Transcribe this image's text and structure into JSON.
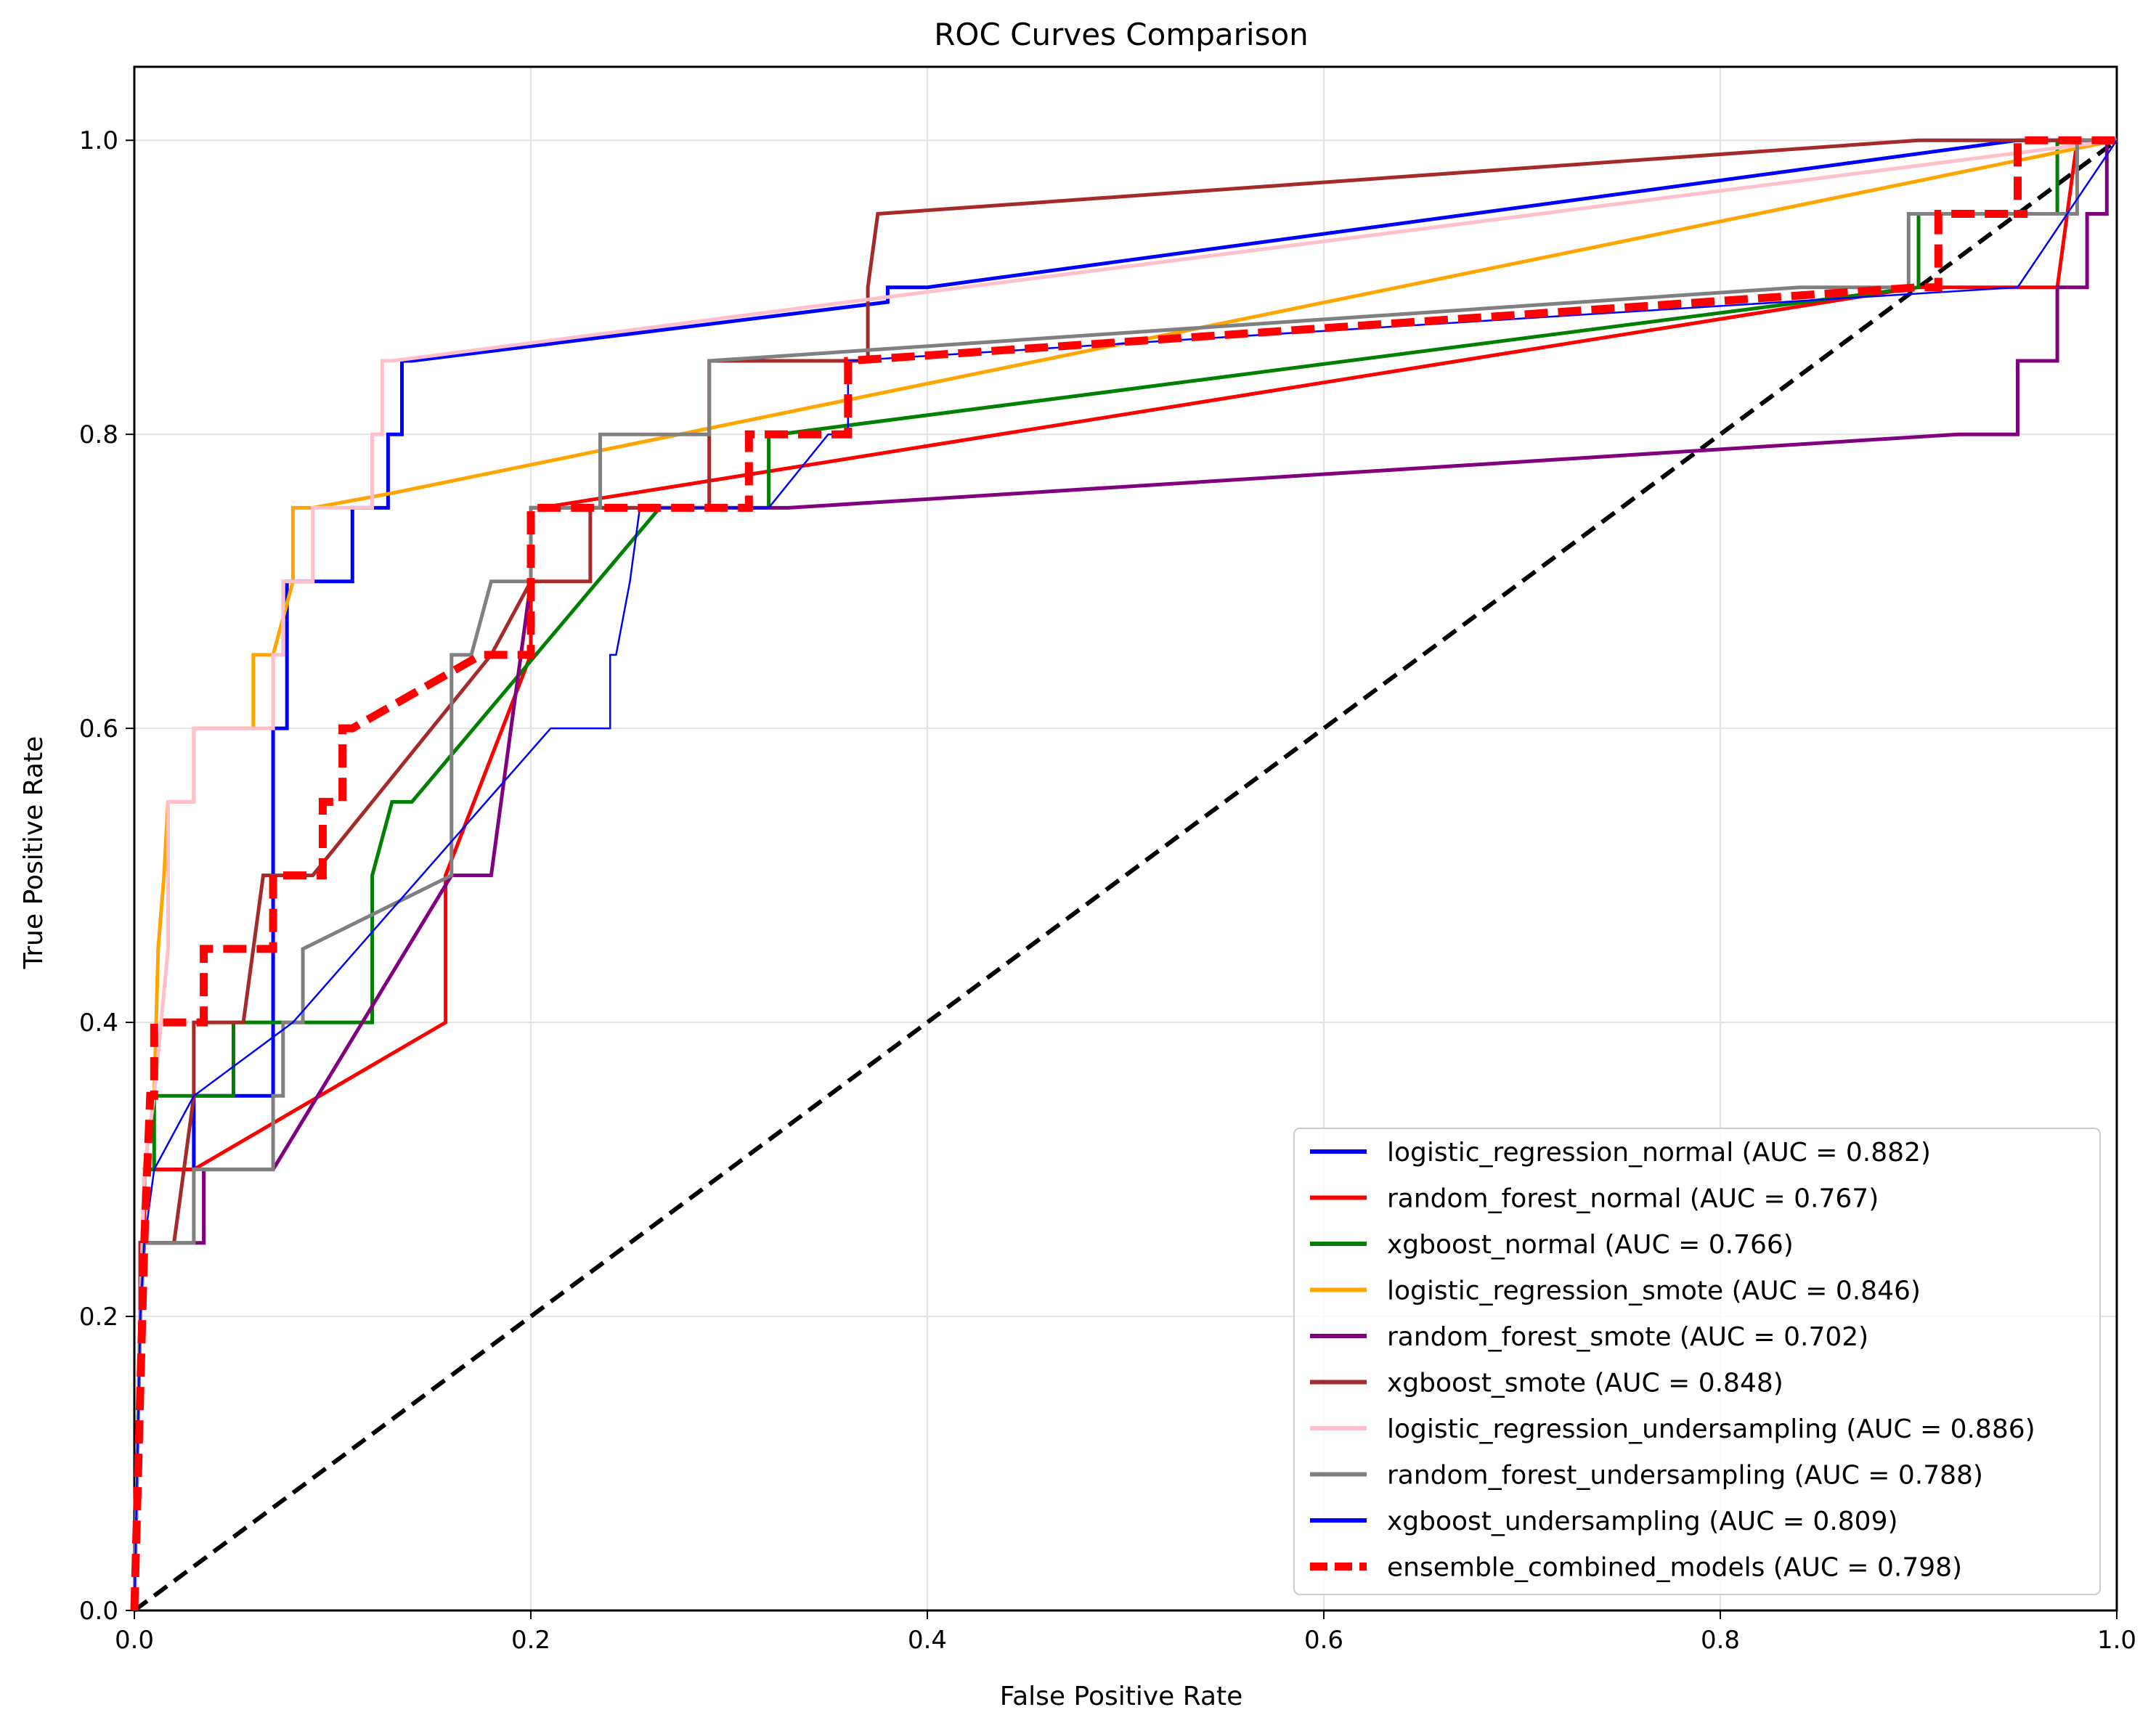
{
  "chart_data": {
    "type": "line",
    "title": "ROC Curves Comparison",
    "xlabel": "False Positive Rate",
    "ylabel": "True Positive Rate",
    "xlim": [
      0.0,
      1.0
    ],
    "ylim": [
      0.0,
      1.05
    ],
    "xticks": [
      0.0,
      0.2,
      0.4,
      0.6,
      0.8,
      1.0
    ],
    "yticks": [
      0.0,
      0.2,
      0.4,
      0.6,
      0.8,
      1.0
    ],
    "xtick_labels": [
      "0.0",
      "0.2",
      "0.4",
      "0.6",
      "0.8",
      "1.0"
    ],
    "ytick_labels": [
      "0.0",
      "0.2",
      "0.4",
      "0.6",
      "0.8",
      "1.0"
    ],
    "grid": true,
    "legend_position": "lower-right",
    "diagonal": {
      "x": [
        0,
        1
      ],
      "y": [
        0,
        1
      ],
      "color": "#000000",
      "style": "dashed"
    },
    "series": [
      {
        "name": "logistic_regression_normal (AUC = 0.882)",
        "color": "#0000ff",
        "style": "solid",
        "x": [
          0,
          0.003,
          0.003,
          0.005,
          0.005,
          0.01,
          0.01,
          0.03,
          0.03,
          0.07,
          0.07,
          0.077,
          0.077,
          0.1,
          0.1,
          0.11,
          0.11,
          0.128,
          0.128,
          0.135,
          0.135,
          0.14,
          0.38,
          0.38,
          0.4,
          0.95,
          1.0
        ],
        "y": [
          0,
          0.2,
          0.25,
          0.25,
          0.3,
          0.3,
          0.3,
          0.3,
          0.35,
          0.35,
          0.6,
          0.6,
          0.7,
          0.7,
          0.7,
          0.7,
          0.75,
          0.75,
          0.8,
          0.8,
          0.85,
          0.85,
          0.89,
          0.9,
          0.9,
          1.0,
          1.0
        ]
      },
      {
        "name": "random_forest_normal (AUC = 0.767)",
        "color": "#ff0000",
        "style": "solid",
        "x": [
          0,
          0.003,
          0.003,
          0.005,
          0.005,
          0.03,
          0.157,
          0.157,
          0.2,
          0.2,
          0.205,
          0.9,
          0.97,
          0.97,
          0.98,
          1.0
        ],
        "y": [
          0,
          0.2,
          0.25,
          0.25,
          0.3,
          0.3,
          0.4,
          0.5,
          0.65,
          0.75,
          0.75,
          0.9,
          0.9,
          0.9,
          1.0,
          1.0
        ]
      },
      {
        "name": "xgboost_normal (AUC = 0.766)",
        "color": "#008000",
        "style": "solid",
        "x": [
          0,
          0.003,
          0.005,
          0.01,
          0.01,
          0.05,
          0.05,
          0.06,
          0.06,
          0.12,
          0.12,
          0.13,
          0.14,
          0.265,
          0.32,
          0.32,
          0.325,
          0.325,
          0.9,
          0.9,
          0.97,
          0.97,
          1.0
        ],
        "y": [
          0,
          0.2,
          0.3,
          0.3,
          0.35,
          0.35,
          0.4,
          0.4,
          0.4,
          0.4,
          0.5,
          0.55,
          0.55,
          0.75,
          0.75,
          0.8,
          0.8,
          0.8,
          0.9,
          0.95,
          0.95,
          1.0,
          1.0
        ]
      },
      {
        "name": "logistic_regression_smote (AUC = 0.846)",
        "color": "#ffa500",
        "style": "solid",
        "x": [
          0,
          0.003,
          0.005,
          0.01,
          0.012,
          0.015,
          0.017,
          0.02,
          0.03,
          0.03,
          0.06,
          0.06,
          0.07,
          0.07,
          0.08,
          0.08,
          0.09,
          0.13,
          1.0
        ],
        "y": [
          0,
          0.2,
          0.3,
          0.35,
          0.45,
          0.5,
          0.55,
          0.55,
          0.55,
          0.6,
          0.6,
          0.65,
          0.65,
          0.65,
          0.7,
          0.75,
          0.75,
          0.76,
          1.0
        ]
      },
      {
        "name": "random_forest_smote (AUC = 0.702)",
        "color": "#800080",
        "style": "solid",
        "x": [
          0,
          0.003,
          0.005,
          0.035,
          0.035,
          0.05,
          0.07,
          0.16,
          0.18,
          0.2,
          0.2,
          0.33,
          0.92,
          0.94,
          0.95,
          0.95,
          0.97,
          0.97,
          0.985,
          0.985,
          0.995,
          0.995,
          1.0
        ],
        "y": [
          0,
          0.2,
          0.25,
          0.25,
          0.3,
          0.3,
          0.3,
          0.5,
          0.5,
          0.7,
          0.75,
          0.75,
          0.8,
          0.8,
          0.8,
          0.85,
          0.85,
          0.9,
          0.9,
          0.95,
          0.95,
          1.0,
          1.0
        ]
      },
      {
        "name": "xgboost_smote (AUC = 0.848)",
        "color": "#a52a2a",
        "style": "solid",
        "x": [
          0,
          0.003,
          0.005,
          0.02,
          0.025,
          0.03,
          0.03,
          0.055,
          0.065,
          0.09,
          0.18,
          0.2,
          0.23,
          0.23,
          0.29,
          0.29,
          0.32,
          0.33,
          0.33,
          0.37,
          0.37,
          0.375,
          0.9,
          0.95,
          1.0
        ],
        "y": [
          0,
          0.2,
          0.25,
          0.25,
          0.3,
          0.35,
          0.4,
          0.4,
          0.5,
          0.5,
          0.65,
          0.7,
          0.7,
          0.75,
          0.75,
          0.85,
          0.85,
          0.85,
          0.85,
          0.85,
          0.9,
          0.95,
          1.0,
          1.0,
          1.0
        ]
      },
      {
        "name": "logistic_regression_undersampling (AUC = 0.886)",
        "color": "#ffc0cb",
        "style": "solid",
        "x": [
          0,
          0.003,
          0.005,
          0.01,
          0.017,
          0.017,
          0.03,
          0.03,
          0.07,
          0.07,
          0.075,
          0.075,
          0.09,
          0.09,
          0.12,
          0.12,
          0.125,
          0.125,
          0.13,
          0.36,
          1.0
        ],
        "y": [
          0,
          0.2,
          0.3,
          0.35,
          0.45,
          0.55,
          0.55,
          0.6,
          0.6,
          0.65,
          0.65,
          0.7,
          0.7,
          0.75,
          0.75,
          0.8,
          0.8,
          0.85,
          0.85,
          0.89,
          1.0
        ]
      },
      {
        "name": "random_forest_undersampling (AUC = 0.788)",
        "color": "#808080",
        "style": "solid",
        "x": [
          0,
          0.003,
          0.005,
          0.005,
          0.03,
          0.03,
          0.07,
          0.07,
          0.075,
          0.075,
          0.085,
          0.085,
          0.16,
          0.16,
          0.17,
          0.18,
          0.2,
          0.2,
          0.205,
          0.235,
          0.235,
          0.29,
          0.29,
          0.84,
          0.895,
          0.895,
          0.98,
          0.98,
          1.0
        ],
        "y": [
          0,
          0.2,
          0.25,
          0.25,
          0.25,
          0.3,
          0.3,
          0.35,
          0.35,
          0.4,
          0.4,
          0.45,
          0.5,
          0.65,
          0.65,
          0.7,
          0.7,
          0.75,
          0.75,
          0.75,
          0.8,
          0.8,
          0.85,
          0.9,
          0.9,
          0.95,
          0.95,
          1.0,
          1.0
        ]
      },
      {
        "name": "xgboost_undersampling (AUC = 0.809)",
        "color": "#0000ff",
        "style": "solid",
        "width_scale": 0.5,
        "x": [
          0,
          0.003,
          0.005,
          0.01,
          0.03,
          0.08,
          0.21,
          0.24,
          0.24,
          0.243,
          0.243,
          0.25,
          0.25,
          0.255,
          0.265,
          0.32,
          0.35,
          0.35,
          0.355,
          0.36,
          0.36,
          0.95,
          1.0
        ],
        "y": [
          0,
          0.2,
          0.25,
          0.3,
          0.35,
          0.4,
          0.6,
          0.6,
          0.65,
          0.65,
          0.65,
          0.7,
          0.7,
          0.75,
          0.75,
          0.75,
          0.8,
          0.8,
          0.8,
          0.8,
          0.85,
          0.9,
          1.0
        ]
      },
      {
        "name": "ensemble_combined_models (AUC = 0.798)",
        "color": "#ff0000",
        "style": "dashed-thick",
        "x": [
          0,
          0.002,
          0.004,
          0.005,
          0.008,
          0.01,
          0.01,
          0.035,
          0.035,
          0.07,
          0.07,
          0.095,
          0.095,
          0.1,
          0.105,
          0.105,
          0.11,
          0.175,
          0.2,
          0.2,
          0.31,
          0.31,
          0.355,
          0.36,
          0.36,
          0.9,
          0.91,
          0.91,
          0.955,
          0.955,
          0.95,
          0.95,
          1.0
        ],
        "y": [
          0,
          0.1,
          0.2,
          0.25,
          0.35,
          0.35,
          0.4,
          0.4,
          0.45,
          0.45,
          0.5,
          0.5,
          0.55,
          0.55,
          0.55,
          0.6,
          0.6,
          0.65,
          0.65,
          0.75,
          0.75,
          0.8,
          0.8,
          0.8,
          0.85,
          0.9,
          0.9,
          0.95,
          0.95,
          0.95,
          0.95,
          1.0,
          1.0
        ]
      }
    ]
  }
}
